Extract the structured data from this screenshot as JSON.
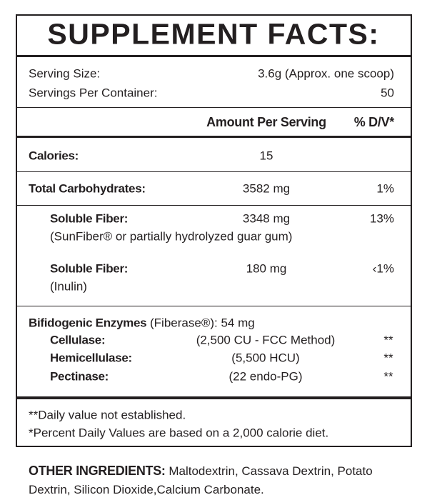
{
  "title": "SUPPLEMENT FACTS:",
  "serving": [
    {
      "label": "Serving Size:",
      "value": "3.6g (Approx. one scoop)"
    },
    {
      "label": "Servings Per Container:",
      "value": 50
    }
  ],
  "header": {
    "amount": "Amount Per Serving",
    "dv": "% D/V*"
  },
  "calories": {
    "label": "Calories:",
    "amount": 15
  },
  "total_carbs": {
    "label": "Total Carbohydrates:",
    "amount": "3582 mg",
    "dv": "1%"
  },
  "fibers": [
    {
      "label": "Soluble Fiber:",
      "amount": "3348 mg",
      "dv": "13%",
      "note": "(SunFiber® or partially hydrolyzed guar gum)"
    },
    {
      "label": "Soluble Fiber:",
      "amount": "180 mg",
      "dv": "‹1%",
      "note": "(Inulin)"
    }
  ],
  "enzymes": {
    "label": "Bifidogenic Enzymes",
    "note": "(Fiberase®):",
    "amount": "54 mg",
    "items": [
      {
        "label": "Cellulase:",
        "activity": "(2,500 CU - FCC Method)",
        "dv": "**"
      },
      {
        "label": "Hemicellulase:",
        "activity": "(5,500 HCU)",
        "dv": "**"
      },
      {
        "label": "Pectinase:",
        "activity": "(22 endo-PG)",
        "dv": "**"
      }
    ]
  },
  "footnotes": [
    "**Daily value not established.",
    "*Percent Daily Values are based on a 2,000 calorie diet."
  ],
  "other_ingredients": {
    "label": "OTHER INGREDIENTS:",
    "text": "Maltodextrin, Cassava Dextrin, Potato Dextrin, Silicon Dioxide,Calcium Carbonate."
  }
}
